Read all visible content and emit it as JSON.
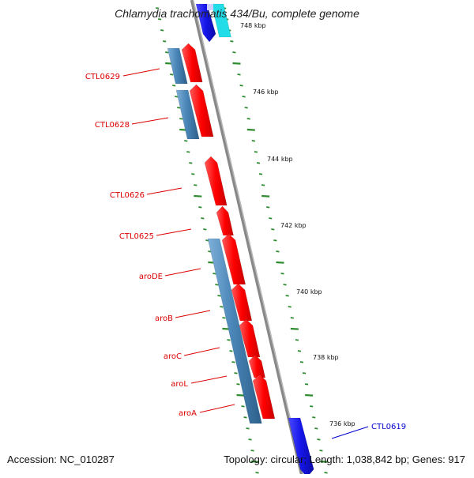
{
  "title": "Chlamydia trachomatis 434/Bu, complete genome",
  "footer": {
    "accession": "Accession: NC_010287",
    "summary": "Topology: circular; Length: 1,038,842 bp; Genes: 917"
  },
  "colors": {
    "backbone": "#888888",
    "ticks": "#2e8b2e",
    "forward_gene": "#ff0000",
    "reverse_gene": "#4a86b8",
    "highlight_gene": "#1515e8",
    "label_red": "#dd0000",
    "label_blue": "#0000cc"
  },
  "scale_labels": [
    "748 kbp",
    "746 kbp",
    "744 kbp",
    "742 kbp",
    "740 kbp",
    "738 kbp",
    "736 kbp"
  ],
  "gene_labels": [
    {
      "name": "CTL0629",
      "color": "red"
    },
    {
      "name": "CTL0628",
      "color": "red"
    },
    {
      "name": "CTL0626",
      "color": "red"
    },
    {
      "name": "CTL0625",
      "color": "red"
    },
    {
      "name": "aroDE",
      "color": "red"
    },
    {
      "name": "aroB",
      "color": "red"
    },
    {
      "name": "aroC",
      "color": "red"
    },
    {
      "name": "aroL",
      "color": "red"
    },
    {
      "name": "aroA",
      "color": "red"
    },
    {
      "name": "CTL0619",
      "color": "blue"
    }
  ]
}
